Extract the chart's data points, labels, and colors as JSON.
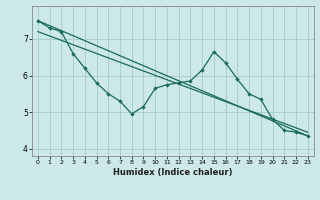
{
  "title": "",
  "xlabel": "Humidex (Indice chaleur)",
  "ylabel": "",
  "background_color": "#cce8e8",
  "grid_color": "#aacfcf",
  "line_color": "#1a6b5a",
  "x_values": [
    0,
    1,
    2,
    3,
    4,
    5,
    6,
    7,
    8,
    9,
    10,
    11,
    12,
    13,
    14,
    15,
    16,
    17,
    18,
    19,
    20,
    21,
    22,
    23
  ],
  "series1": [
    7.5,
    7.3,
    7.2,
    6.6,
    6.2,
    5.8,
    5.5,
    5.3,
    4.95,
    5.15,
    5.65,
    5.75,
    5.8,
    5.85,
    6.15,
    6.65,
    6.35,
    5.9,
    5.5,
    5.35,
    4.8,
    4.5,
    4.45,
    4.35
  ],
  "series2_x": [
    0,
    23
  ],
  "series2_y": [
    7.5,
    4.35
  ],
  "series3_x": [
    0,
    23
  ],
  "series3_y": [
    7.2,
    4.45
  ],
  "ylim": [
    3.8,
    7.9
  ],
  "xlim": [
    -0.5,
    23.5
  ],
  "yticks": [
    4,
    5,
    6,
    7
  ],
  "xticks": [
    0,
    1,
    2,
    3,
    4,
    5,
    6,
    7,
    8,
    9,
    10,
    11,
    12,
    13,
    14,
    15,
    16,
    17,
    18,
    19,
    20,
    21,
    22,
    23
  ]
}
